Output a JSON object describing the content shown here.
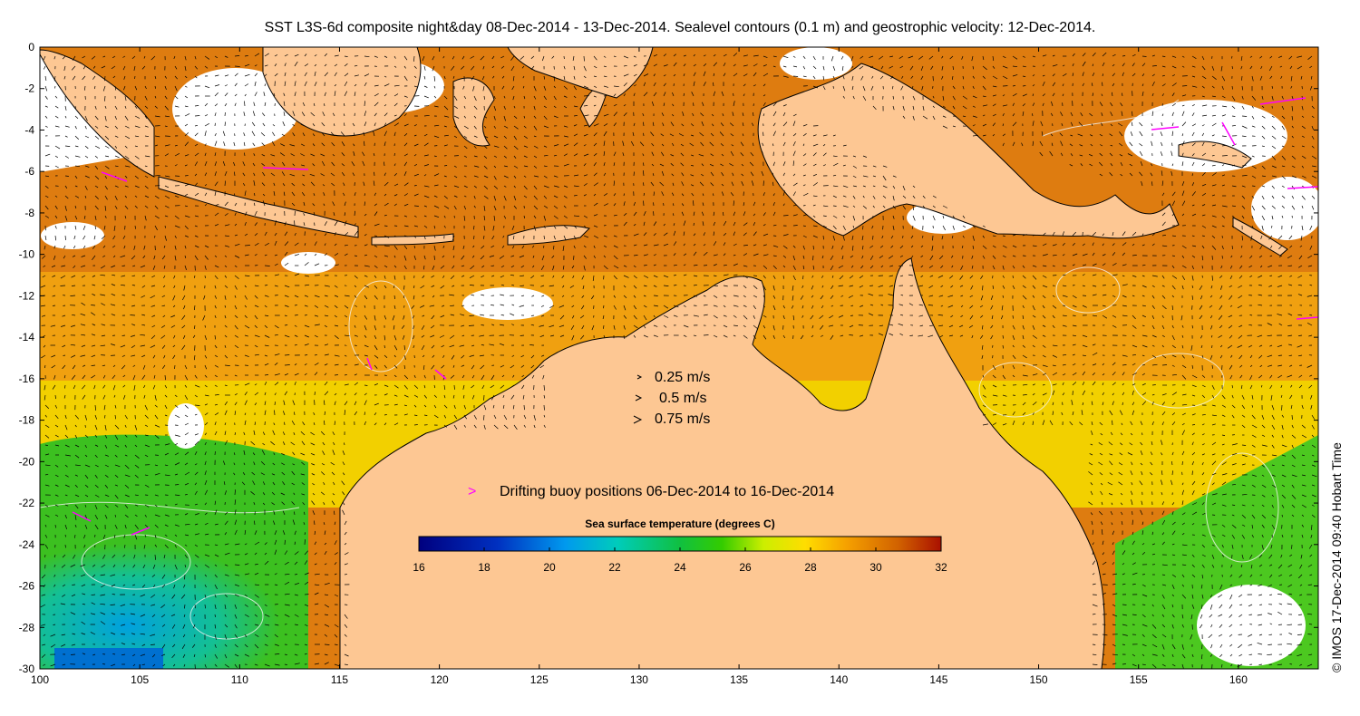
{
  "title": "SST L3S-6d composite night&day 08-Dec-2014 - 13-Dec-2014. Sealevel contours (0.1 m) and geostrophic velocity: 12-Dec-2014.",
  "credit": "© IMOS 17-Dec-2014 09:40 Hobart Time",
  "colors": {
    "land": "#fdc793",
    "no_data": "#ffffff",
    "contour": "#f0f0f0",
    "buoy": "#ff00ff",
    "coast": "#000000"
  },
  "map": {
    "lon_range": [
      100,
      164
    ],
    "lat_range": [
      -30,
      0
    ],
    "x_ticks": [
      "100",
      "105",
      "110",
      "115",
      "120",
      "125",
      "130",
      "135",
      "140",
      "145",
      "150",
      "155",
      "160"
    ],
    "y_ticks": [
      "0",
      "-2",
      "-4",
      "-6",
      "-8",
      "-10",
      "-12",
      "-14",
      "-16",
      "-18",
      "-20",
      "-22",
      "-24",
      "-26",
      "-28",
      "-30"
    ]
  },
  "velocity_legend": [
    {
      "label": "0.25 m/s",
      "speed": 0.25
    },
    {
      "label": "0.5 m/s",
      "speed": 0.5
    },
    {
      "label": "0.75 m/s",
      "speed": 0.75
    }
  ],
  "buoy_legend": {
    "symbol": ">",
    "label": "Drifting buoy positions 06-Dec-2014 to 16-Dec-2014"
  },
  "colorbar": {
    "title": "Sea surface temperature (degrees C)",
    "min": 16,
    "max": 32,
    "ticks": [
      "16",
      "18",
      "20",
      "22",
      "24",
      "26",
      "28",
      "30",
      "32"
    ]
  }
}
